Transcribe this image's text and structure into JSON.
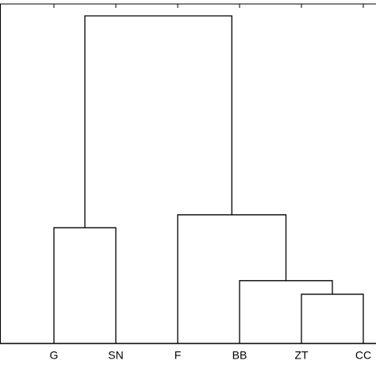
{
  "chart_data": {
    "type": "dendrogram",
    "color": "#000000",
    "ylim": [
      0,
      1
    ],
    "tree": {
      "height": 0.965,
      "children": [
        {
          "height": 0.341,
          "children": [
            "G",
            "SN"
          ]
        },
        {
          "height": 0.379,
          "children": [
            "F",
            {
              "height": 0.185,
              "children": [
                "BB",
                {
                  "height": 0.145,
                  "children": [
                    "ZT",
                    "CC"
                  ]
                }
              ]
            }
          ]
        }
      ]
    }
  }
}
